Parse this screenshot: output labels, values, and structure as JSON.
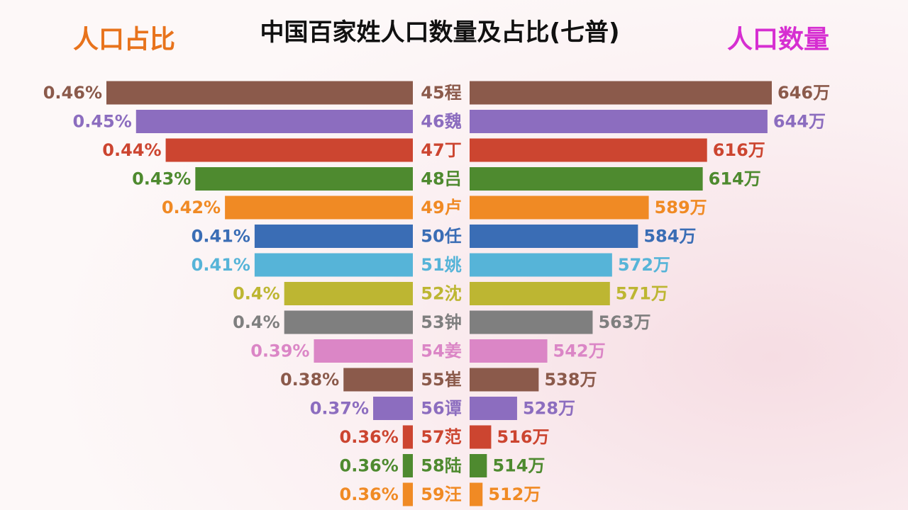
{
  "chart_data": {
    "type": "butterfly",
    "title": "中国百家姓人口数量及占比(七普)",
    "categories": [
      "45程",
      "46魏",
      "47丁",
      "48吕",
      "49卢",
      "50任",
      "51姚",
      "52沈",
      "53钟",
      "54姜",
      "55崔",
      "56谭",
      "57范",
      "58陆",
      "59汪"
    ],
    "colors": [
      "#8b5a4b",
      "#8c6dbf",
      "#cc4530",
      "#4e8a2f",
      "#f08a24",
      "#3a6db5",
      "#56b4d8",
      "#bdb632",
      "#7f7f7f",
      "#db86c6",
      "#8b5a4b",
      "#8c6dbf",
      "#cc4530",
      "#4e8a2f",
      "#f08a24"
    ],
    "series": [
      {
        "name": "人口占比",
        "color": "#e8731c",
        "xlim": [
          0.3566,
          0.46
        ],
        "values": [
          0.46,
          0.45,
          0.44,
          0.43,
          0.42,
          0.41,
          0.41,
          0.4,
          0.4,
          0.39,
          0.38,
          0.37,
          0.36,
          0.36,
          0.36
        ],
        "value_labels": [
          "0.46%",
          "0.45%",
          "0.44%",
          "0.43%",
          "0.42%",
          "0.41%",
          "0.41%",
          "0.4%",
          "0.4%",
          "0.39%",
          "0.38%",
          "0.37%",
          "0.36%",
          "0.36%",
          "0.36%"
        ]
      },
      {
        "name": "人口数量",
        "color": "#d62ed1",
        "xlim": [
          506,
          646
        ],
        "values": [
          646,
          644,
          616,
          614,
          589,
          584,
          572,
          571,
          563,
          542,
          538,
          528,
          516,
          514,
          512
        ],
        "value_labels": [
          "646万",
          "644万",
          "616万",
          "614万",
          "589万",
          "584万",
          "572万",
          "571万",
          "563万",
          "542万",
          "538万",
          "528万",
          "516万",
          "514万",
          "512万"
        ]
      }
    ]
  }
}
